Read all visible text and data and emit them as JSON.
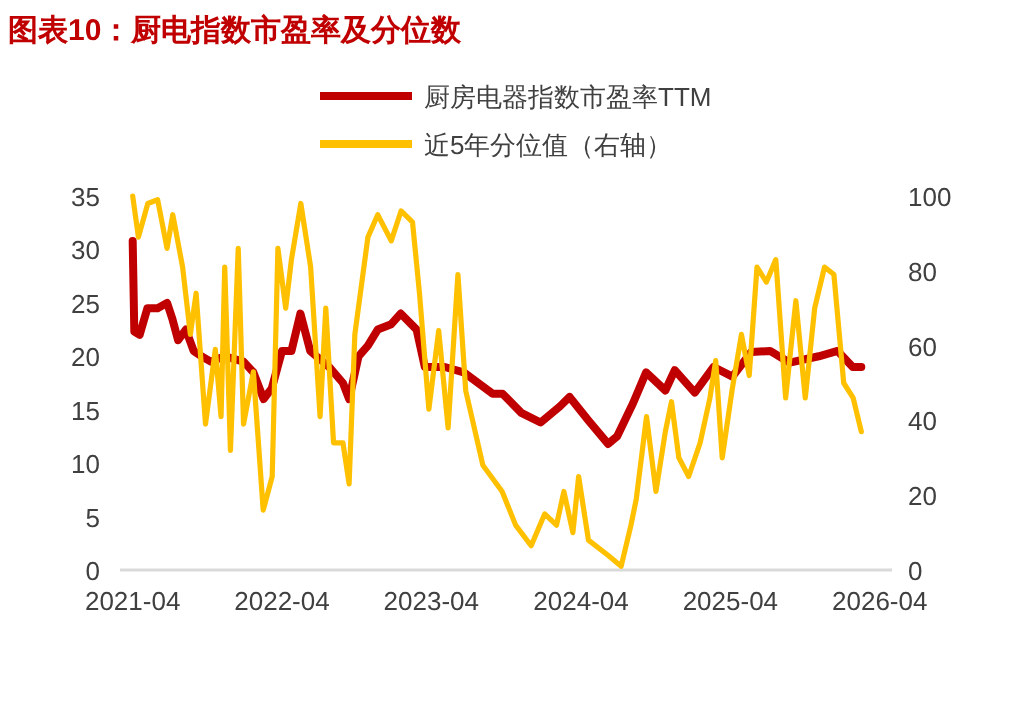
{
  "chart_data": {
    "type": "line",
    "title": "图表10：厨电指数市盈率及分位数",
    "legend": "top",
    "xlim": [
      "2021-03-01",
      "2026-05-01"
    ],
    "xticks": [
      "2021-04",
      "2022-04",
      "2023-04",
      "2024-04",
      "2025-04",
      "2026-04"
    ],
    "ylim": [
      0,
      35
    ],
    "yticks": [
      0,
      5,
      10,
      15,
      20,
      25,
      30,
      35
    ],
    "y2lim": [
      0,
      100
    ],
    "y2ticks": [
      0,
      20,
      40,
      60,
      80,
      100
    ],
    "series": [
      {
        "name": "厨房电器指数市盈率TTM",
        "color": "#c00000",
        "x": [
          "2021-04-01",
          "2021-04-05",
          "2021-04-18",
          "2021-05-07",
          "2021-06-01",
          "2021-06-24",
          "2021-07-07",
          "2021-07-21",
          "2021-08-09",
          "2021-08-28",
          "2021-09-16",
          "2021-10-09",
          "2021-11-12",
          "2021-12-28",
          "2022-01-21",
          "2022-02-15",
          "2022-03-07",
          "2022-04-01",
          "2022-04-24",
          "2022-05-16",
          "2022-06-09",
          "2022-07-25",
          "2022-08-28",
          "2022-09-12",
          "2022-10-05",
          "2022-10-28",
          "2022-11-21",
          "2022-12-24",
          "2023-01-16",
          "2023-02-24",
          "2023-03-16",
          "2023-05-04",
          "2023-06-19",
          "2023-08-29",
          "2023-09-22",
          "2023-11-07",
          "2023-12-24",
          "2024-02-09",
          "2024-03-04",
          "2024-04-19",
          "2024-06-06",
          "2024-06-28",
          "2024-08-06",
          "2024-09-07",
          "2024-10-24",
          "2024-11-16",
          "2025-01-04",
          "2025-02-19",
          "2025-04-06",
          "2025-05-22",
          "2025-07-07",
          "2025-08-24",
          "2025-11-03",
          "2025-12-19",
          "2026-01-25",
          "2026-02-15"
        ],
        "values": [
          30.8,
          22.3,
          22,
          24.5,
          24.5,
          25,
          23.5,
          21.5,
          22.5,
          20.5,
          20,
          19.5,
          20,
          19.5,
          18.5,
          16,
          17,
          20.5,
          20.5,
          24,
          20.5,
          19,
          17.5,
          16,
          20,
          21,
          22.5,
          23,
          24,
          22.5,
          19,
          19,
          18.5,
          16.5,
          16.5,
          14.7,
          13.8,
          15.3,
          16.2,
          14,
          11.8,
          12.5,
          15.6,
          18.5,
          16.8,
          18.7,
          16.6,
          19,
          18.1,
          20.4,
          20.5,
          19.4,
          20,
          20.5,
          19,
          19
        ]
      },
      {
        "name": "近5年分位值（右轴）",
        "color": "#ffc000",
        "axis": "y2",
        "x": [
          "2021-04-01",
          "2021-04-15",
          "2021-05-08",
          "2021-06-01",
          "2021-06-24",
          "2021-07-08",
          "2021-08-01",
          "2021-08-20",
          "2021-09-03",
          "2021-09-26",
          "2021-10-20",
          "2021-11-03",
          "2021-11-12",
          "2021-11-26",
          "2021-12-15",
          "2021-12-28",
          "2022-01-21",
          "2022-02-14",
          "2022-03-08",
          "2022-03-22",
          "2022-04-10",
          "2022-04-24",
          "2022-05-17",
          "2022-06-10",
          "2022-07-03",
          "2022-07-17",
          "2022-08-05",
          "2022-08-28",
          "2022-09-12",
          "2022-09-26",
          "2022-10-28",
          "2022-11-21",
          "2022-12-24",
          "2023-01-17",
          "2023-02-14",
          "2023-03-03",
          "2023-03-26",
          "2023-04-19",
          "2023-05-12",
          "2023-06-05",
          "2023-06-24",
          "2023-08-05",
          "2023-09-21",
          "2023-10-24",
          "2023-12-01",
          "2024-01-03",
          "2024-02-01",
          "2024-02-19",
          "2024-03-12",
          "2024-03-26",
          "2024-04-19",
          "2024-06-05",
          "2024-07-08",
          "2024-08-01",
          "2024-08-14",
          "2024-09-08",
          "2024-10-01",
          "2024-10-24",
          "2024-11-08",
          "2024-11-26",
          "2024-12-20",
          "2025-01-17",
          "2025-02-10",
          "2025-02-24",
          "2025-03-12",
          "2025-04-05",
          "2025-04-28",
          "2025-05-17",
          "2025-06-05",
          "2025-06-28",
          "2025-07-21",
          "2025-08-14",
          "2025-09-08",
          "2025-10-01",
          "2025-10-24",
          "2025-11-17",
          "2025-12-10",
          "2026-01-03",
          "2026-01-26",
          "2026-02-15"
        ],
        "values": [
          100,
          89,
          98,
          99,
          86,
          95,
          81,
          63,
          74,
          39,
          59,
          41,
          81,
          32,
          86,
          39,
          53,
          16,
          25,
          86,
          70,
          83,
          98,
          81,
          41,
          70,
          34,
          34,
          23,
          63,
          89,
          95,
          88,
          96,
          93,
          74,
          43,
          64,
          38,
          79,
          48,
          28,
          21,
          12,
          6.5,
          15,
          12,
          21,
          10,
          25,
          8,
          4,
          1,
          12,
          19,
          41,
          21,
          37,
          45,
          30,
          25,
          34,
          46,
          56,
          30,
          48,
          63,
          52,
          81,
          77,
          83,
          46,
          72,
          46,
          70,
          81,
          79,
          50,
          46,
          37
        ]
      }
    ]
  }
}
